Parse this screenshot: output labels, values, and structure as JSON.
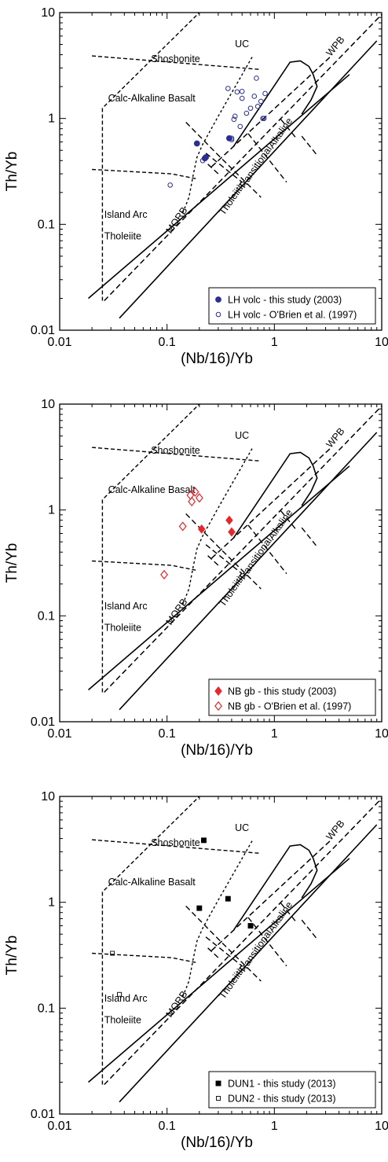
{
  "chart_data": [
    {
      "type": "scatter",
      "title": "",
      "xlabel": "(Nb/16)/Yb",
      "ylabel": "Th/Yb",
      "xscale": "log",
      "yscale": "log",
      "xlim": [
        0.01,
        10
      ],
      "ylim": [
        0.01,
        10
      ],
      "x_ticks": [
        "0.01",
        "0.1",
        "1",
        "10"
      ],
      "y_ticks": [
        "0.01",
        "0.1",
        "1",
        "10"
      ],
      "grid": false,
      "legend_position": "bottom-right",
      "region_labels": [
        "UC",
        "Shoshonite",
        "Calc-Alkaline Basalt",
        "Island Arc",
        "Tholeiite",
        "MORB",
        "Tholeiitic",
        "Transitional",
        "Alkaline",
        "WPB"
      ],
      "series": [
        {
          "name": "LH volc - this study (2003)",
          "marker": "filled-circle",
          "color": "#2b2f8f",
          "points": [
            [
              0.19,
              0.58
            ],
            [
              0.225,
              0.42
            ],
            [
              0.23,
              0.43
            ],
            [
              0.38,
              0.65
            ]
          ]
        },
        {
          "name": "LH volc - O'Brien et al. (1997)",
          "marker": "open-circle",
          "color": "#2b2f8f",
          "points": [
            [
              0.107,
              0.235
            ],
            [
              0.215,
              0.4
            ],
            [
              0.37,
              1.92
            ],
            [
              0.4,
              0.63
            ],
            [
              0.42,
              0.98
            ],
            [
              0.43,
              1.05
            ],
            [
              0.45,
              1.78
            ],
            [
              0.48,
              0.84
            ],
            [
              0.5,
              1.55
            ],
            [
              0.5,
              1.8
            ],
            [
              0.55,
              1.12
            ],
            [
              0.6,
              1.25
            ],
            [
              0.65,
              1.62
            ],
            [
              0.68,
              2.4
            ],
            [
              0.7,
              1.3
            ],
            [
              0.75,
              1.45
            ],
            [
              0.78,
              1.0
            ],
            [
              0.82,
              1.72
            ],
            [
              0.8,
              1.0
            ],
            [
              0.4,
              0.65
            ]
          ]
        }
      ]
    },
    {
      "type": "scatter",
      "title": "",
      "xlabel": "(Nb/16)/Yb",
      "ylabel": "Th/Yb",
      "xscale": "log",
      "yscale": "log",
      "xlim": [
        0.01,
        10
      ],
      "ylim": [
        0.01,
        10
      ],
      "x_ticks": [
        "0.01",
        "0.1",
        "1",
        "10"
      ],
      "y_ticks": [
        "0.01",
        "0.1",
        "1",
        "10"
      ],
      "grid": false,
      "legend_position": "bottom-right",
      "region_labels": [
        "UC",
        "Shoshonite",
        "Calc-Alkaline Basalt",
        "Island Arc",
        "Tholeiite",
        "MORB",
        "Tholeiitic",
        "Transitional",
        "Alkaline",
        "WPB"
      ],
      "series": [
        {
          "name": "NB gb - this study (2003)",
          "marker": "filled-diamond",
          "color": "#e8262b",
          "points": [
            [
              0.21,
              0.66
            ],
            [
              0.38,
              0.8
            ],
            [
              0.4,
              0.62
            ]
          ]
        },
        {
          "name": "NB gb - O'Brien et al. (1997)",
          "marker": "open-diamond",
          "color": "#e8262b",
          "points": [
            [
              0.094,
              0.245
            ],
            [
              0.14,
              0.7
            ],
            [
              0.165,
              1.38
            ],
            [
              0.17,
              1.2
            ],
            [
              0.183,
              1.48
            ],
            [
              0.2,
              1.3
            ]
          ]
        }
      ]
    },
    {
      "type": "scatter",
      "title": "",
      "xlabel": "(Nb/16)/Yb",
      "ylabel": "Th/Yb",
      "xscale": "log",
      "yscale": "log",
      "xlim": [
        0.01,
        10
      ],
      "ylim": [
        0.01,
        10
      ],
      "x_ticks": [
        "0.01",
        "0.1",
        "1",
        "10"
      ],
      "y_ticks": [
        "0.01",
        "0.1",
        "1",
        "10"
      ],
      "grid": false,
      "legend_position": "bottom-right",
      "region_labels": [
        "UC",
        "Shoshonite",
        "Calc-Alkaline Basalt",
        "Island Arc",
        "Tholeiite",
        "MORB",
        "Tholeiitic",
        "Transitional",
        "Alkaline",
        "WPB"
      ],
      "series": [
        {
          "name": "DUN1 - this study (2013)",
          "marker": "filled-square",
          "color": "#000000",
          "points": [
            [
              0.2,
              0.88
            ],
            [
              0.22,
              3.85
            ],
            [
              0.37,
              1.08
            ],
            [
              0.6,
              0.6
            ]
          ]
        },
        {
          "name": "DUN2 - this study (2013)",
          "marker": "open-square",
          "color": "#000000",
          "points": [
            [
              0.031,
              0.33
            ],
            [
              0.036,
              0.135
            ]
          ]
        }
      ]
    }
  ]
}
